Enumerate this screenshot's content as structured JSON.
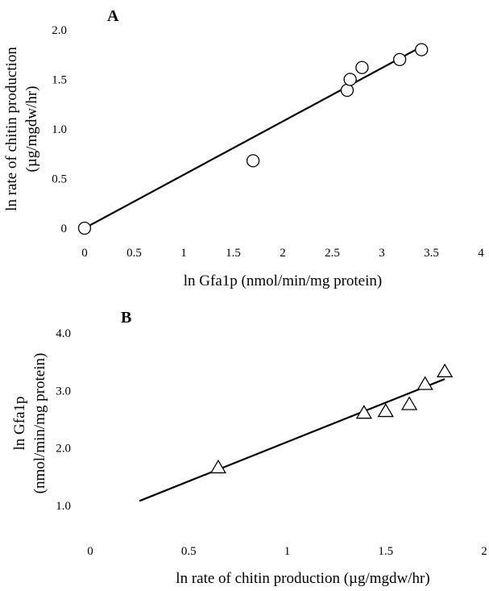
{
  "chart_data": [
    {
      "type": "scatter",
      "title": "A",
      "xlabel": "ln Gfa1p (nmol/min/mg protein)",
      "ylabel_lines": [
        "ln rate of chitin production",
        "(µg/mgdw/hr)"
      ],
      "xlim": [
        0,
        4
      ],
      "ylim": [
        0,
        2.0
      ],
      "x_ticks": [
        "0",
        "0.5",
        "1",
        "1.5",
        "2",
        "2.5",
        "3",
        "3.5",
        "4"
      ],
      "y_ticks": [
        "0",
        "0.5",
        "1.0",
        "1.5",
        "2.0"
      ],
      "marker": "circle",
      "points": [
        {
          "x": 0,
          "y": 0
        },
        {
          "x": 1.7,
          "y": 0.68
        },
        {
          "x": 2.65,
          "y": 1.39
        },
        {
          "x": 2.68,
          "y": 1.5
        },
        {
          "x": 2.8,
          "y": 1.62
        },
        {
          "x": 3.18,
          "y": 1.7
        },
        {
          "x": 3.4,
          "y": 1.8
        }
      ],
      "fit_line": {
        "x": [
          0,
          3.4
        ],
        "y": [
          0,
          1.83
        ]
      }
    },
    {
      "type": "scatter",
      "title": "B",
      "xlabel": "ln rate of chitin production (µg/mgdw/hr)",
      "ylabel_lines": [
        "ln Gfa1p",
        "(nmol/min/mg protein)"
      ],
      "xlim": [
        0,
        2
      ],
      "ylim": [
        1.0,
        4.0
      ],
      "x_ticks": [
        "0",
        "0.5",
        "1",
        "1.5",
        "2"
      ],
      "y_ticks": [
        "1.0",
        "2.0",
        "3.0",
        "4.0"
      ],
      "marker": "triangle",
      "points": [
        {
          "x": 0.65,
          "y": 1.65
        },
        {
          "x": 1.39,
          "y": 2.6
        },
        {
          "x": 1.5,
          "y": 2.63
        },
        {
          "x": 1.62,
          "y": 2.75
        },
        {
          "x": 1.7,
          "y": 3.1
        },
        {
          "x": 1.8,
          "y": 3.32
        }
      ],
      "fit_line": {
        "x": [
          0.25,
          1.8
        ],
        "y": [
          1.08,
          3.2
        ]
      }
    }
  ]
}
